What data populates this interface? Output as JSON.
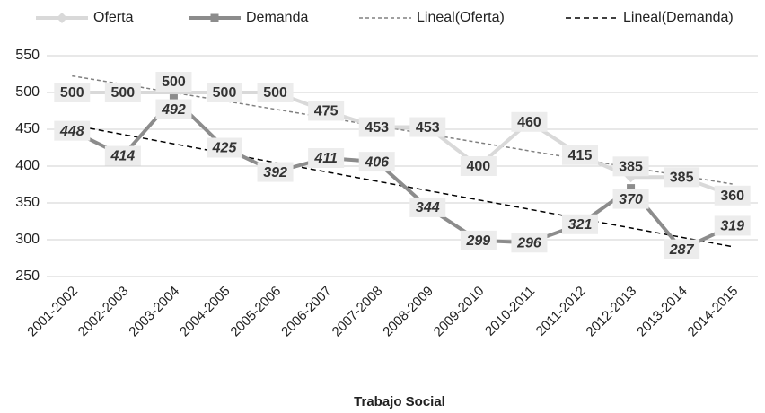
{
  "chart_data": {
    "type": "line",
    "title": "Trabajo Social",
    "categories": [
      "2001-2002",
      "2002-2003",
      "2003-2004",
      "2004-2005",
      "2005-2006",
      "2006-2007",
      "2007-2008",
      "2008-2009",
      "2009-2010",
      "2010-2011",
      "2011-2012",
      "2012-2013",
      "2013-2014",
      "2014-2015"
    ],
    "series": [
      {
        "name": "Oferta",
        "color": "#d9d9d9",
        "marker": "diamond",
        "values": [
          500,
          500,
          500,
          500,
          500,
          475,
          453,
          453,
          400,
          460,
          415,
          385,
          385,
          360
        ]
      },
      {
        "name": "Demanda",
        "color": "#8c8c8c",
        "marker": "square",
        "values": [
          448,
          414,
          492,
          425,
          392,
          411,
          406,
          344,
          299,
          296,
          321,
          370,
          287,
          319
        ]
      }
    ],
    "trendlines": [
      {
        "name": "Lineal(Oferta)",
        "of": "Oferta",
        "color": "#808080",
        "dash": "4 3"
      },
      {
        "name": "Lineal(Demanda)",
        "of": "Demanda",
        "color": "#000000",
        "dash": "6 4"
      }
    ],
    "ylim": [
      250,
      550
    ],
    "yticks": [
      250,
      300,
      350,
      400,
      450,
      500,
      550
    ],
    "grid": true,
    "legend": "top"
  }
}
